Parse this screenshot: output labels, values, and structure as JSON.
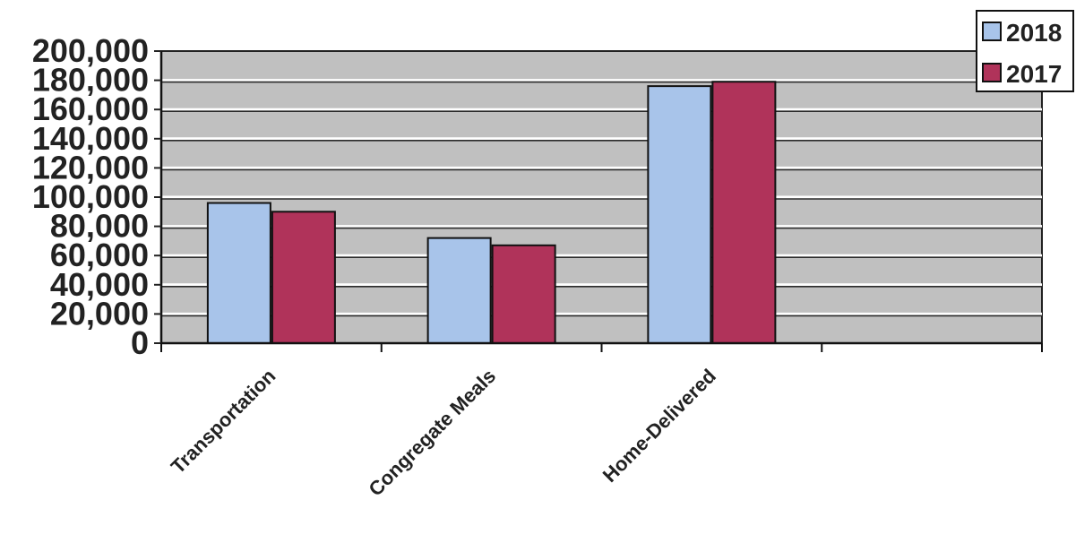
{
  "chart_data": {
    "type": "bar",
    "categories": [
      "Transportation",
      "Congregate Meals",
      "Home-Delivered",
      ""
    ],
    "series": [
      {
        "name": "2018",
        "values": [
          96000,
          72000,
          176000,
          null
        ],
        "color": "#a8c4ea"
      },
      {
        "name": "2017",
        "values": [
          90000,
          67000,
          179000,
          null
        ],
        "color": "#b0335a"
      }
    ],
    "title": "",
    "xlabel": "",
    "ylabel": "",
    "ylim": [
      0,
      200000
    ],
    "yticks": [
      "0",
      "20,000",
      "40,000",
      "60,000",
      "80,000",
      "100,000",
      "120,000",
      "140,000",
      "160,000",
      "180,000",
      "200,000"
    ],
    "grid": true,
    "legend": "top-right",
    "plot_background": "#c0c0c0"
  }
}
